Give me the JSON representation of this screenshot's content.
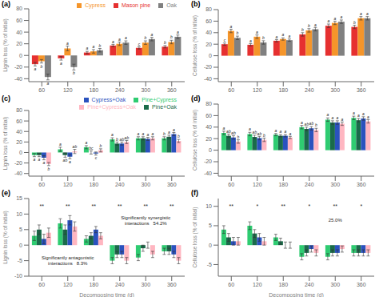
{
  "chart_data": [
    {
      "type": "bar",
      "title": "(a)",
      "y_label": "Lignin loss (% of initial)",
      "categories": [
        60,
        120,
        180,
        240,
        300,
        360
      ],
      "ylim": [
        -45,
        80
      ],
      "yticks": [
        -40,
        -20,
        0,
        20,
        40,
        60,
        80
      ],
      "grid": false,
      "legend": "top",
      "series": [
        {
          "name": "Mason pine",
          "color": "#e63030",
          "values": [
            -15,
            -5,
            5,
            17,
            13,
            15
          ],
          "errors": [
            3,
            3,
            2,
            2,
            2,
            2
          ],
          "letters": [
            "a",
            "a",
            "a",
            "a",
            "c",
            "b"
          ]
        },
        {
          "name": "Cypress",
          "color": "#f5952a",
          "values": [
            -10,
            12,
            7,
            20,
            22,
            23
          ],
          "errors": [
            3,
            4,
            3,
            3,
            3,
            3
          ],
          "letters": [
            "b",
            "a",
            "a",
            "a",
            "b",
            "b"
          ]
        },
        {
          "name": "Oak",
          "color": "#808080",
          "values": [
            -37,
            -20,
            9,
            22,
            28,
            32
          ],
          "errors": [
            5,
            5,
            3,
            3,
            3,
            3
          ],
          "letters": [
            "a",
            "b",
            "b",
            "a",
            "a",
            "a"
          ]
        }
      ]
    },
    {
      "type": "bar",
      "title": "(b)",
      "y_label": "Cellulose loss (% of initial)",
      "categories": [
        60,
        120,
        180,
        240,
        300,
        360
      ],
      "ylim": [
        -45,
        80
      ],
      "yticks": [
        -40,
        -20,
        0,
        20,
        40,
        60,
        80
      ],
      "grid": false,
      "series": [
        {
          "name": "Mason pine",
          "color": "#e63030",
          "values": [
            20,
            19,
            26,
            37,
            52,
            50
          ],
          "errors": [
            2,
            2,
            2,
            3,
            3,
            3
          ],
          "letters": [
            "c",
            "a",
            "a",
            "b",
            "a",
            "b"
          ]
        },
        {
          "name": "Cypress",
          "color": "#f5952a",
          "values": [
            43,
            33,
            29,
            44,
            57,
            65
          ],
          "errors": [
            3,
            3,
            2,
            3,
            3,
            3
          ],
          "letters": [
            "a",
            "a",
            "a",
            "b",
            "a",
            "a"
          ]
        },
        {
          "name": "Oak",
          "color": "#808080",
          "values": [
            31,
            23,
            27,
            46,
            59,
            65
          ],
          "errors": [
            3,
            3,
            2,
            3,
            3,
            3
          ],
          "letters": [
            "b",
            "b",
            "a",
            "a",
            "a",
            "a"
          ]
        }
      ]
    },
    {
      "type": "bar",
      "title": "(c)",
      "y_label": "Lignin loss (% of initial)",
      "categories": [
        60,
        120,
        180,
        240,
        300,
        360
      ],
      "ylim": [
        -45,
        80
      ],
      "yticks": [
        -40,
        -20,
        0,
        20,
        40,
        60,
        80
      ],
      "grid": false,
      "legend": "top",
      "series": [
        {
          "name": "Pine+Cypress",
          "color": "#2ecc71",
          "values": [
            -5,
            6,
            10,
            25,
            27,
            27
          ],
          "errors": [
            3,
            4,
            3,
            3,
            3,
            3
          ],
          "letters": [
            "a",
            "a",
            "a",
            "a",
            "a",
            "b"
          ]
        },
        {
          "name": "Pine+Oak",
          "color": "#1a6b4a",
          "values": [
            -5,
            -5,
            0,
            17,
            27,
            30
          ],
          "errors": [
            3,
            4,
            3,
            3,
            3,
            3
          ],
          "letters": [
            "a",
            "ab",
            "bc",
            "b",
            "a",
            "a"
          ]
        },
        {
          "name": "Cypress+Oak",
          "color": "#2a52be",
          "values": [
            -10,
            -8,
            -2,
            17,
            26,
            35
          ],
          "errors": [
            4,
            4,
            3,
            3,
            3,
            3
          ],
          "letters": [
            "a",
            "a",
            "c",
            "ab",
            "a",
            "a"
          ]
        },
        {
          "name": "Pine+Cypress+Oak",
          "color": "#ffb6c1",
          "values": [
            -22,
            2,
            4,
            20,
            27,
            22
          ],
          "errors": [
            3,
            4,
            3,
            3,
            3,
            3
          ],
          "letters": [
            "b",
            "ab",
            "b",
            "ab",
            "a",
            "b"
          ]
        }
      ]
    },
    {
      "type": "bar",
      "title": "(d)",
      "y_label": "Cellulose loss (% of initial)",
      "categories": [
        60,
        120,
        180,
        240,
        300,
        360
      ],
      "ylim": [
        -45,
        80
      ],
      "yticks": [
        -40,
        -20,
        0,
        20,
        40,
        60,
        80
      ],
      "grid": false,
      "series": [
        {
          "name": "Pine+Cypress",
          "color": "#2ecc71",
          "values": [
            30,
            28,
            27,
            40,
            53,
            56
          ],
          "errors": [
            3,
            3,
            2,
            3,
            3,
            3
          ],
          "letters": [
            "a",
            "a",
            "a",
            "a",
            "a",
            "a"
          ]
        },
        {
          "name": "Pine+Oak",
          "color": "#1a6b4a",
          "values": [
            25,
            23,
            25,
            37,
            48,
            52
          ],
          "errors": [
            3,
            3,
            2,
            3,
            3,
            3
          ],
          "letters": [
            "ab",
            "ab",
            "a",
            "ab",
            "a",
            "a"
          ]
        },
        {
          "name": "Cypress+Oak",
          "color": "#2a52be",
          "values": [
            22,
            21,
            25,
            38,
            48,
            55
          ],
          "errors": [
            3,
            3,
            2,
            3,
            3,
            3
          ],
          "letters": [
            "ab",
            "ab",
            "a",
            "ab",
            "a",
            "a"
          ]
        },
        {
          "name": "Pine+Cypress+Oak",
          "color": "#ffb6c1",
          "values": [
            15,
            18,
            22,
            35,
            46,
            50
          ],
          "errors": [
            3,
            3,
            2,
            3,
            3,
            3
          ],
          "letters": [
            "b",
            "b",
            "a",
            "b",
            "a",
            "a"
          ]
        }
      ]
    },
    {
      "type": "bar",
      "title": "(e)",
      "y_label": "Lignin loss (% of initial)",
      "x_label": "Decomposing time (d)",
      "categories": [
        60,
        120,
        180,
        240,
        300,
        360
      ],
      "ylim": [
        -10,
        15
      ],
      "yticks": [
        -10,
        -5,
        0,
        5,
        10,
        15
      ],
      "grid": false,
      "series": [
        {
          "name": "Pine+Cypress",
          "color": "#2ecc71",
          "values": [
            3,
            7,
            2,
            -5,
            -4,
            -2
          ],
          "errors": [
            1.5,
            1.5,
            1,
            1,
            1,
            1
          ]
        },
        {
          "name": "Pine+Oak",
          "color": "#1a6b4a",
          "values": [
            5,
            5,
            3,
            -3,
            -1,
            -2
          ],
          "errors": [
            1.5,
            1.5,
            1,
            1,
            1,
            1
          ]
        },
        {
          "name": "Cypress+Oak",
          "color": "#2a52be",
          "values": [
            2,
            8,
            5,
            -3,
            0,
            -3
          ],
          "errors": [
            1.5,
            1.5,
            1,
            1,
            1,
            1
          ]
        },
        {
          "name": "Pine+Cypress+Oak",
          "color": "#ffb6c1",
          "values": [
            4,
            6,
            3,
            -5,
            -3,
            -5
          ],
          "errors": [
            1.5,
            1.5,
            1,
            1,
            1,
            1
          ]
        }
      ],
      "annotations": [
        "Significantly synergistic\ninteractions   54.2%",
        "Significantly antagonistic\ninteractions   8.3%"
      ],
      "stars": [
        "**",
        "**",
        "**",
        "**",
        "**",
        "**"
      ]
    },
    {
      "type": "bar",
      "title": "(f)",
      "y_label": "Cellulose loss (% of initial)",
      "x_label": "Decomposing time (d)",
      "categories": [
        60,
        120,
        180,
        240,
        300,
        360
      ],
      "ylim": [
        -8,
        12
      ],
      "yticks": [
        -5,
        0,
        5,
        10
      ],
      "grid": false,
      "series": [
        {
          "name": "Pine+Cypress",
          "color": "#2ecc71",
          "values": [
            4,
            5,
            2,
            -3,
            -3,
            -2
          ],
          "errors": [
            1,
            1,
            0.8,
            0.8,
            0.8,
            0.8
          ]
        },
        {
          "name": "Pine+Oak",
          "color": "#1a6b4a",
          "values": [
            2,
            3,
            1,
            -2,
            -2,
            -2
          ],
          "errors": [
            1,
            1,
            0.8,
            0.8,
            0.8,
            0.8
          ]
        },
        {
          "name": "Cypress+Oak",
          "color": "#2a52be",
          "values": [
            1,
            2,
            0,
            -1,
            -2,
            -2
          ],
          "errors": [
            1,
            1,
            0.8,
            0.8,
            0.8,
            0.8
          ]
        },
        {
          "name": "Pine+Cypress+Oak",
          "color": "#ffb6c1",
          "values": [
            1,
            1,
            0,
            -2,
            -1,
            -2
          ],
          "errors": [
            1,
            1,
            0.8,
            0.8,
            0.8,
            0.8
          ]
        }
      ],
      "annotations": [
        "25.0%"
      ],
      "stars": [
        "**",
        "*",
        "**",
        "*",
        "**",
        "*"
      ]
    }
  ]
}
